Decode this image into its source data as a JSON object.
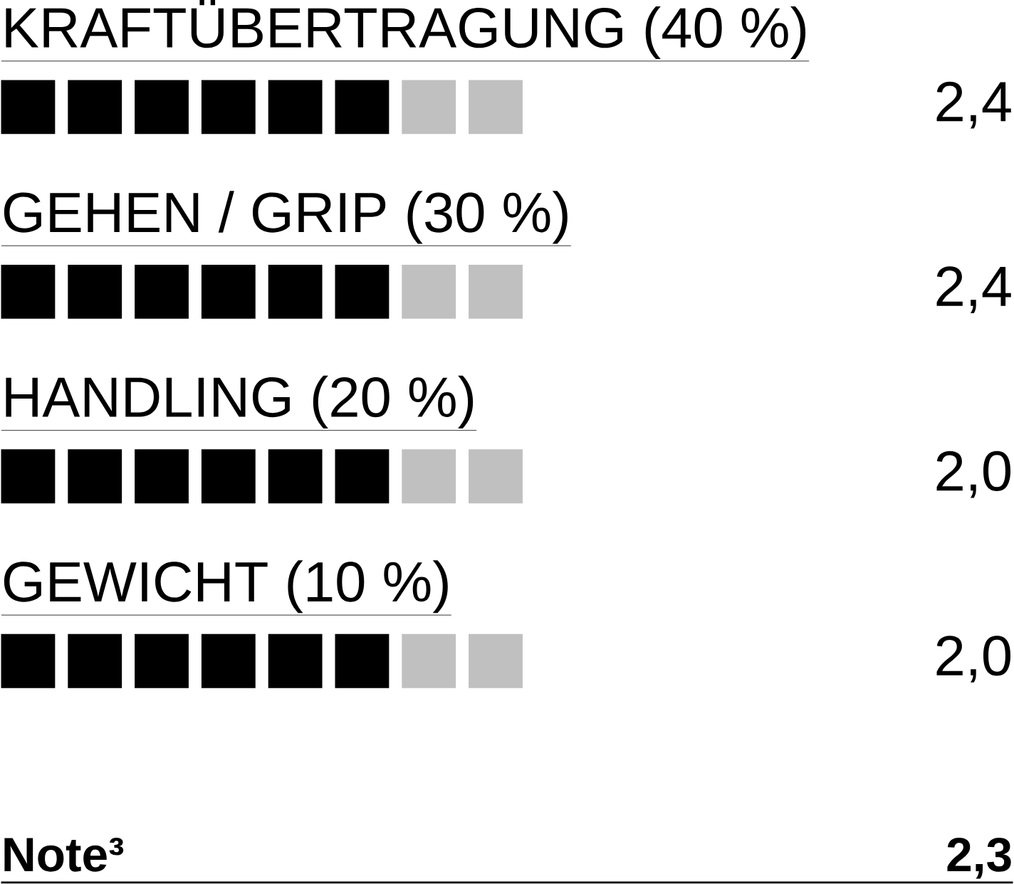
{
  "chart_data": {
    "type": "other",
    "categories": [
      "KRAFTÜBERTRAGUNG (40 %)",
      "GEHEN / GRIP (30 %)",
      "HANDLING (20 %)",
      "GEWICHT (10 %)"
    ],
    "values": [
      2.4,
      2.4,
      2.0,
      2.0
    ],
    "value_labels": [
      "2,4",
      "2,4",
      "2,0",
      "2,0"
    ],
    "annotations": [
      "Note³",
      "2,3"
    ]
  }
}
